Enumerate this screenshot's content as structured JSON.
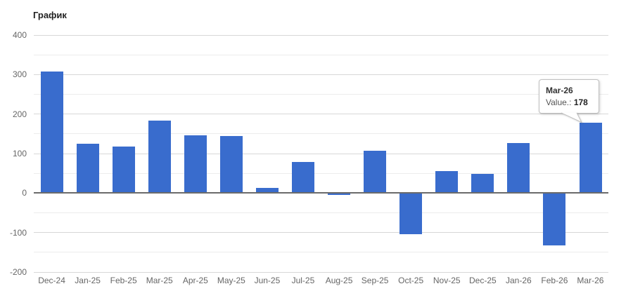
{
  "chart_data": {
    "type": "bar",
    "title": "График",
    "categories": [
      "Dec-24",
      "Jan-25",
      "Feb-25",
      "Mar-25",
      "Apr-25",
      "May-25",
      "Jun-25",
      "Jul-25",
      "Aug-25",
      "Sep-25",
      "Oct-25",
      "Nov-25",
      "Dec-25",
      "Jan-26",
      "Feb-26",
      "Mar-26"
    ],
    "values": [
      308,
      125,
      117,
      184,
      147,
      144,
      13,
      78,
      -4,
      107,
      -104,
      56,
      48,
      126,
      -132,
      178
    ],
    "xlabel": "",
    "ylabel": "",
    "ylim": [
      -200,
      400
    ],
    "ytick_step": 100,
    "yminor_step": 50,
    "grid": true,
    "legend": "none",
    "tooltip": {
      "category": "Mar-26",
      "label": "Value.:",
      "value": "178"
    },
    "colors": {
      "bar": "#396ccd",
      "grid_major": "#d7d7d7",
      "grid_minor": "#ececec",
      "zero_line": "#6b6b6b",
      "axis_label": "#666666",
      "title_text": "#222222",
      "tooltip_border": "#c0c0c0",
      "tooltip_title": "#333333",
      "tooltip_text": "#555555",
      "tooltip_value": "#222222"
    }
  }
}
